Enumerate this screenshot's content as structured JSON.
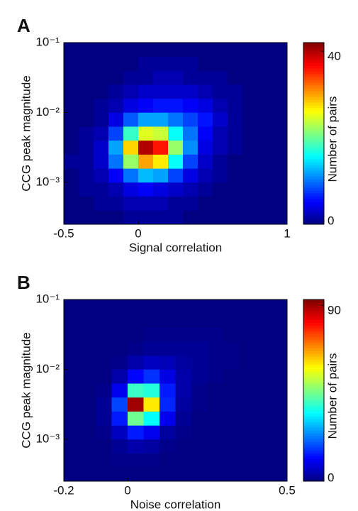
{
  "chart_data": [
    {
      "type": "heatmap",
      "panel_label": "A",
      "xlabel": "Signal correlation",
      "ylabel": "CCG peak magnitude",
      "colorbar_label": "Number of pairs",
      "colormap": "jet",
      "yscale": "log",
      "xlim": [
        -0.5,
        1
      ],
      "xticks": [
        -0.5,
        0,
        1
      ],
      "ylim": [
        0.000251,
        0.1
      ],
      "yticks": [
        {
          "value": 0.1,
          "label": "10⁻¹"
        },
        {
          "value": 0.01,
          "label": "10⁻²"
        },
        {
          "value": 0.001,
          "label": "10⁻³"
        }
      ],
      "zlim": [
        0,
        42
      ],
      "zticks": [
        0,
        40
      ],
      "xbins": [
        -0.5,
        -0.4,
        -0.3,
        -0.2,
        -0.1,
        0,
        0.1,
        0.2,
        0.3,
        0.4,
        0.5,
        0.6,
        0.7,
        0.8,
        0.9,
        1
      ],
      "ybins": [
        0.000251,
        0.000398,
        0.000631,
        0.001,
        0.00158,
        0.00251,
        0.00398,
        0.00631,
        0.01,
        0.0158,
        0.0251,
        0.0398,
        0.0631,
        0.1
      ],
      "z": [
        [
          0,
          0,
          0,
          0,
          1,
          1,
          1,
          1,
          0,
          0,
          0,
          0,
          0,
          0,
          0
        ],
        [
          0,
          0,
          1,
          1,
          2,
          2,
          2,
          1,
          1,
          0,
          0,
          0,
          0,
          0,
          0
        ],
        [
          0,
          1,
          1,
          2,
          4,
          5,
          4,
          3,
          2,
          1,
          0,
          0,
          0,
          0,
          0
        ],
        [
          0,
          1,
          2,
          5,
          10,
          13,
          12,
          8,
          4,
          2,
          1,
          0,
          0,
          0,
          0
        ],
        [
          1,
          1,
          3,
          10,
          22,
          30,
          27,
          16,
          8,
          3,
          1,
          0,
          0,
          0,
          0
        ],
        [
          0,
          1,
          3,
          12,
          28,
          40,
          36,
          22,
          11,
          4,
          2,
          1,
          0,
          0,
          0
        ],
        [
          0,
          1,
          2,
          8,
          18,
          25,
          24,
          16,
          10,
          5,
          2,
          1,
          0,
          0,
          0
        ],
        [
          0,
          0,
          1,
          4,
          9,
          12,
          12,
          10,
          8,
          6,
          3,
          1,
          0,
          0,
          0
        ],
        [
          0,
          0,
          1,
          2,
          4,
          5,
          6,
          6,
          5,
          4,
          2,
          1,
          0,
          0,
          0
        ],
        [
          0,
          0,
          0,
          1,
          2,
          3,
          3,
          3,
          3,
          2,
          1,
          1,
          0,
          0,
          0
        ],
        [
          0,
          0,
          0,
          0,
          1,
          1,
          2,
          2,
          1,
          1,
          1,
          0,
          0,
          0,
          0
        ],
        [
          0,
          0,
          0,
          0,
          0,
          1,
          1,
          1,
          1,
          0,
          0,
          0,
          0,
          0,
          0
        ],
        [
          0,
          0,
          0,
          0,
          0,
          0,
          0,
          0,
          0,
          0,
          0,
          0,
          0,
          0,
          0
        ]
      ]
    },
    {
      "type": "heatmap",
      "panel_label": "B",
      "xlabel": "Noise correlation",
      "ylabel": "CCG peak magnitude",
      "colorbar_label": "Number of pairs",
      "colormap": "jet",
      "yscale": "log",
      "xlim": [
        -0.2,
        0.5
      ],
      "xticks": [
        -0.2,
        0,
        0.5
      ],
      "ylim": [
        0.000251,
        0.1
      ],
      "yticks": [
        {
          "value": 0.1,
          "label": "10⁻¹"
        },
        {
          "value": 0.01,
          "label": "10⁻²"
        },
        {
          "value": 0.001,
          "label": "10⁻³"
        }
      ],
      "zlim": [
        0,
        93
      ],
      "zticks": [
        0,
        90
      ],
      "xbins": [
        -0.2,
        -0.15,
        -0.1,
        -0.05,
        0,
        0.05,
        0.1,
        0.15,
        0.2,
        0.25,
        0.3,
        0.35,
        0.4,
        0.45,
        0.5
      ],
      "ybins": [
        0.000251,
        0.000398,
        0.000631,
        0.001,
        0.00158,
        0.00251,
        0.00398,
        0.00631,
        0.01,
        0.0158,
        0.0251,
        0.0398,
        0.0631,
        0.1
      ],
      "z": [
        [
          0,
          0,
          0,
          0,
          0,
          0,
          0,
          0,
          0,
          0,
          0,
          0,
          0,
          0
        ],
        [
          0,
          0,
          0,
          1,
          1,
          1,
          0,
          0,
          0,
          0,
          0,
          0,
          0,
          0
        ],
        [
          0,
          0,
          0,
          2,
          4,
          3,
          1,
          0,
          0,
          0,
          0,
          0,
          0,
          0
        ],
        [
          0,
          0,
          1,
          6,
          14,
          10,
          3,
          1,
          0,
          0,
          0,
          0,
          0,
          0
        ],
        [
          0,
          0,
          2,
          14,
          45,
          35,
          10,
          2,
          0,
          0,
          0,
          0,
          0,
          0
        ],
        [
          0,
          0,
          2,
          18,
          90,
          60,
          15,
          3,
          1,
          0,
          0,
          0,
          0,
          0
        ],
        [
          0,
          0,
          1,
          10,
          40,
          38,
          14,
          4,
          1,
          0,
          0,
          0,
          0,
          0
        ],
        [
          0,
          0,
          0,
          4,
          12,
          16,
          9,
          4,
          2,
          1,
          0,
          0,
          0,
          0
        ],
        [
          0,
          0,
          0,
          1,
          4,
          6,
          5,
          3,
          2,
          1,
          1,
          0,
          0,
          0
        ],
        [
          0,
          0,
          0,
          0,
          1,
          2,
          2,
          2,
          2,
          1,
          1,
          0,
          0,
          0
        ],
        [
          0,
          0,
          0,
          0,
          0,
          1,
          1,
          1,
          1,
          1,
          0,
          0,
          0,
          0
        ],
        [
          0,
          0,
          0,
          0,
          0,
          0,
          0,
          0,
          0,
          0,
          0,
          0,
          0,
          0
        ],
        [
          0,
          0,
          0,
          0,
          0,
          0,
          0,
          0,
          0,
          0,
          0,
          0,
          0,
          0
        ]
      ]
    }
  ]
}
